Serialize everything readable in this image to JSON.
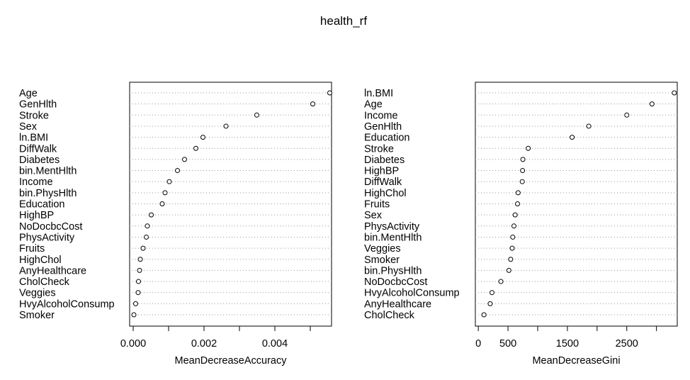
{
  "title": "health_rf",
  "chart_data": [
    {
      "type": "scatter",
      "variant": "dotchart",
      "xlabel": "MeanDecreaseAccuracy",
      "xlim": [
        -0.0001,
        0.0056
      ],
      "xticks": [
        0,
        0.001,
        0.002,
        0.003,
        0.004,
        0.005
      ],
      "xtick_labels": [
        "0.000",
        "",
        "0.002",
        "",
        "0.004",
        ""
      ],
      "grid": "dotted-horizontal",
      "categories": [
        "Age",
        "GenHlth",
        "Stroke",
        "Sex",
        "ln.BMI",
        "DiffWalk",
        "Diabetes",
        "bin.MentHlth",
        "Income",
        "bin.PhysHlth",
        "Education",
        "HighBP",
        "NoDocbcCost",
        "PhysActivity",
        "Fruits",
        "HighChol",
        "AnyHealthcare",
        "CholCheck",
        "Veggies",
        "HvyAlcoholConsump",
        "Smoker"
      ],
      "values": [
        0.00555,
        0.00507,
        0.00349,
        0.00262,
        0.00197,
        0.00177,
        0.00145,
        0.00125,
        0.00102,
        0.0009,
        0.00082,
        0.00051,
        0.0004,
        0.00037,
        0.00028,
        0.0002,
        0.00018,
        0.00015,
        0.00014,
        7e-05,
        2e-05
      ]
    },
    {
      "type": "scatter",
      "variant": "dotchart",
      "xlabel": "MeanDecreaseGini",
      "xlim": [
        -50,
        3350
      ],
      "xticks": [
        0,
        500,
        1000,
        1500,
        2000,
        2500,
        3000
      ],
      "xtick_labels": [
        "0",
        "500",
        "",
        "1500",
        "",
        "2500",
        ""
      ],
      "grid": "dotted-horizontal",
      "categories": [
        "ln.BMI",
        "Age",
        "Income",
        "GenHlth",
        "Education",
        "Stroke",
        "Diabetes",
        "HighBP",
        "DiffWalk",
        "HighChol",
        "Fruits",
        "Sex",
        "PhysActivity",
        "bin.MentHlth",
        "Veggies",
        "Smoker",
        "bin.PhysHlth",
        "NoDocbcCost",
        "HvyAlcoholConsump",
        "AnyHealthcare",
        "CholCheck"
      ],
      "values": [
        3300,
        2925,
        2500,
        1860,
        1580,
        840,
        750,
        745,
        740,
        670,
        660,
        620,
        600,
        580,
        570,
        545,
        515,
        380,
        230,
        200,
        95
      ]
    }
  ]
}
